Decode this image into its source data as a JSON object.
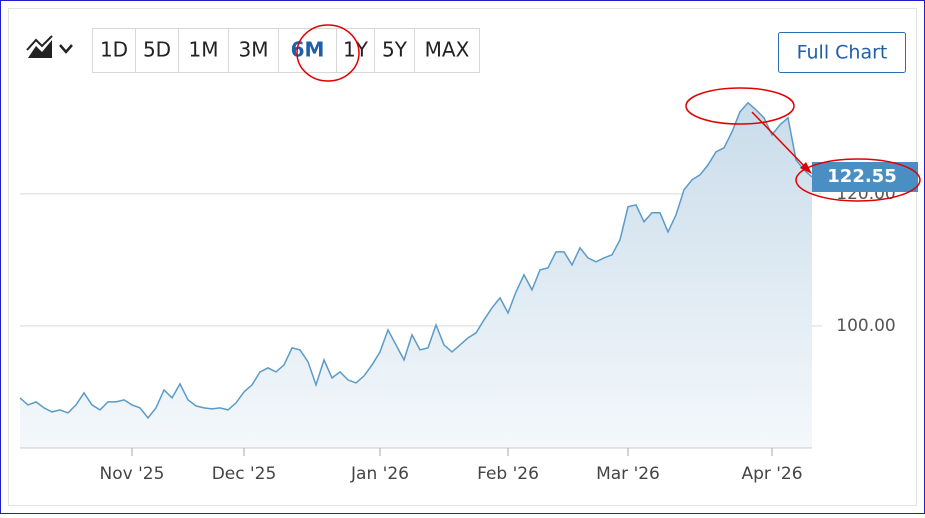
{
  "ui": {
    "ranges": [
      "1D",
      "5D",
      "1M",
      "3M",
      "6M",
      "1Y",
      "5Y",
      "MAX"
    ],
    "selected_range": "6M",
    "full_chart": "Full Chart"
  },
  "chart_data": {
    "type": "area",
    "color": "#5b9bc8",
    "grid": true,
    "categories": [
      null,
      null,
      null,
      null,
      null,
      null,
      null,
      null,
      null,
      null,
      null,
      null,
      null,
      null,
      "Nov '25",
      null,
      null,
      null,
      null,
      null,
      null,
      null,
      null,
      null,
      null,
      null,
      null,
      null,
      "Dec '25",
      null,
      null,
      null,
      null,
      null,
      null,
      null,
      null,
      null,
      null,
      null,
      null,
      null,
      null,
      null,
      null,
      "Jan '26",
      null,
      null,
      null,
      null,
      null,
      null,
      null,
      null,
      null,
      null,
      null,
      null,
      null,
      null,
      null,
      "Feb '26",
      null,
      null,
      null,
      null,
      null,
      null,
      null,
      null,
      null,
      null,
      null,
      null,
      null,
      null,
      "Mar '26",
      null,
      null,
      null,
      null,
      null,
      null,
      null,
      null,
      null,
      null,
      null,
      null,
      null,
      null,
      null,
      null,
      null,
      "Apr '26",
      null,
      null,
      null,
      null,
      null
    ],
    "values": [
      89.09,
      88.03,
      88.48,
      87.58,
      86.97,
      87.27,
      86.82,
      88.03,
      89.85,
      88.03,
      87.27,
      88.48,
      88.48,
      88.79,
      88.03,
      87.58,
      86.06,
      87.58,
      90.3,
      89.09,
      91.21,
      88.79,
      87.88,
      87.58,
      87.42,
      87.58,
      87.27,
      88.33,
      90.0,
      91.06,
      93.03,
      93.64,
      93.03,
      94.09,
      96.67,
      96.36,
      94.55,
      91.06,
      94.85,
      92.12,
      93.03,
      91.82,
      91.36,
      92.42,
      94.09,
      96.06,
      99.39,
      97.12,
      94.85,
      98.64,
      96.36,
      96.67,
      100.15,
      97.12,
      96.06,
      97.12,
      98.18,
      98.94,
      100.91,
      102.73,
      104.24,
      101.97,
      105.15,
      107.73,
      105.45,
      108.48,
      108.79,
      111.21,
      111.21,
      109.24,
      111.82,
      110.3,
      109.7,
      110.3,
      110.76,
      113.03,
      118.03,
      118.33,
      115.76,
      117.12,
      117.12,
      114.24,
      116.82,
      120.61,
      122.12,
      122.88,
      124.39,
      126.36,
      126.97,
      129.39,
      132.42,
      133.79,
      132.73,
      131.52,
      128.94,
      130.45,
      131.52,
      125.15,
      123.64,
      122.55
    ],
    "ylim": [
      81.5,
      138
    ],
    "yticks": [
      {
        "value": 100,
        "label": "100.00"
      },
      {
        "value": 120,
        "label": "120.00"
      }
    ]
  }
}
